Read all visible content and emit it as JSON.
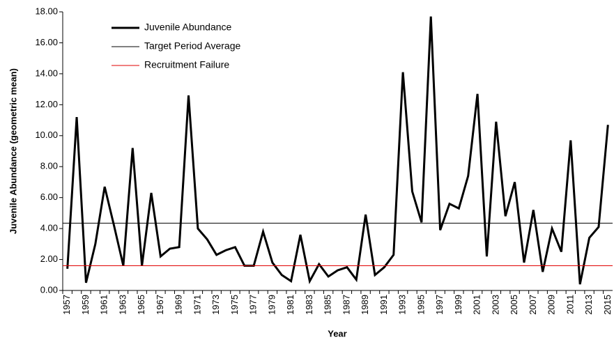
{
  "chart_data": {
    "type": "line",
    "x_label": "Year",
    "y_label": "Juvenile Abundance (geometric mean)",
    "categories": [
      "1957",
      null,
      "1959",
      null,
      "1961",
      null,
      "1963",
      null,
      "1965",
      null,
      "1967",
      null,
      "1969",
      null,
      "1971",
      null,
      "1973",
      null,
      "1975",
      null,
      "1977",
      null,
      "1979",
      null,
      "1981",
      null,
      "1983",
      null,
      "1985",
      null,
      "1987",
      null,
      "1989",
      null,
      "1991",
      null,
      "1993",
      null,
      "1995",
      null,
      "1997",
      null,
      "1999",
      null,
      "2001",
      null,
      "2003",
      null,
      "2005",
      null,
      "2007",
      null,
      "2009",
      null,
      "2011",
      null,
      "2013",
      null,
      "2015"
    ],
    "series": [
      {
        "name": "Juvenile Abundance",
        "color": "#000000",
        "values": [
          1.4,
          11.2,
          0.5,
          3.0,
          6.7,
          4.2,
          1.6,
          9.2,
          1.6,
          6.3,
          2.2,
          2.7,
          2.8,
          12.6,
          4.0,
          3.3,
          2.3,
          2.6,
          2.8,
          1.6,
          1.6,
          3.8,
          1.8,
          1.0,
          0.6,
          3.6,
          0.6,
          1.7,
          0.9,
          1.3,
          1.5,
          0.7,
          4.9,
          1.0,
          1.5,
          2.3,
          14.1,
          6.4,
          4.4,
          17.7,
          3.9,
          5.6,
          5.3,
          7.4,
          12.7,
          2.2,
          10.9,
          4.8,
          7.0,
          1.8,
          5.2,
          1.2,
          4.0,
          2.5,
          9.7,
          0.4,
          3.4,
          4.1,
          10.7
        ]
      },
      {
        "name": "Target Period Average",
        "color": "#000000",
        "value": 4.35
      },
      {
        "name": "Recruitment Failure",
        "color": "#e00000",
        "value": 1.6
      }
    ],
    "ylim": [
      0,
      18
    ],
    "yticks": [
      {
        "value": 0,
        "label": "0.00"
      },
      {
        "value": 2,
        "label": "2.00"
      },
      {
        "value": 4,
        "label": "4.00"
      },
      {
        "value": 6,
        "label": "6.00"
      },
      {
        "value": 8,
        "label": "8.00"
      },
      {
        "value": 10,
        "label": "10.00"
      },
      {
        "value": 12,
        "label": "12.00"
      },
      {
        "value": 14,
        "label": "14.00"
      },
      {
        "value": 16,
        "label": "16.00"
      },
      {
        "value": 18,
        "label": "18.00"
      }
    ],
    "grid": false
  }
}
